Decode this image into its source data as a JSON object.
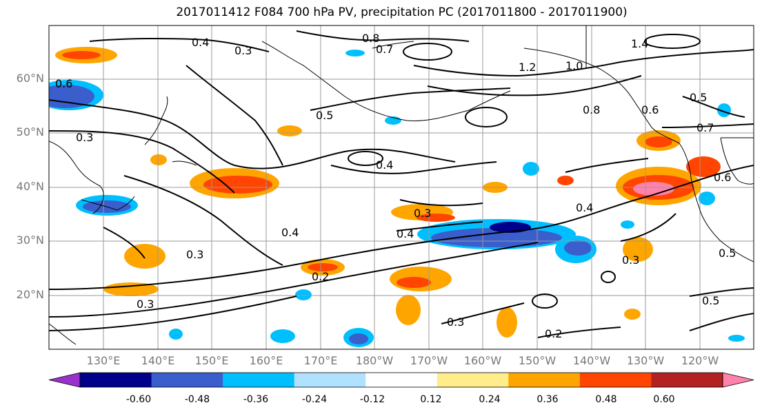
{
  "title": "2017011412 F084 700 hPa PV, precipitation PC (2017011800 - 2017011900)",
  "lat_labels": [
    "60°N",
    "50°N",
    "40°N",
    "30°N",
    "20°N"
  ],
  "lon_labels": [
    "130°E",
    "140°E",
    "150°E",
    "160°E",
    "170°E",
    "180°W",
    "170°W",
    "160°W",
    "150°W",
    "140°W",
    "130°W",
    "120°W"
  ],
  "contour_labels": [
    "0.6",
    "0.4",
    "0.3",
    "0.8",
    "0.5",
    "0.7",
    "1.2",
    "1.0",
    "1.4",
    "0.5",
    "0.3",
    "0.4",
    "0.3",
    "0.4",
    "0.3",
    "0.2",
    "0.4",
    "0.3",
    "0.3",
    "0.2",
    "0.8",
    "0.6",
    "0.7",
    "0.4",
    "0.5",
    "0.6",
    "0.3",
    "0.5"
  ],
  "colorbar": {
    "labels": [
      "-0.60",
      "-0.48",
      "-0.36",
      "-0.24",
      "-0.12",
      "0.12",
      "0.24",
      "0.36",
      "0.48",
      "0.60"
    ],
    "colors": [
      "#9932CC",
      "#00008B",
      "#3A5FCD",
      "#00BFFF",
      "#B0E2FF",
      "#FFFFFF",
      "#FFEC8B",
      "#FFA500",
      "#FF4500",
      "#B22222",
      "#FF82AB"
    ]
  }
}
